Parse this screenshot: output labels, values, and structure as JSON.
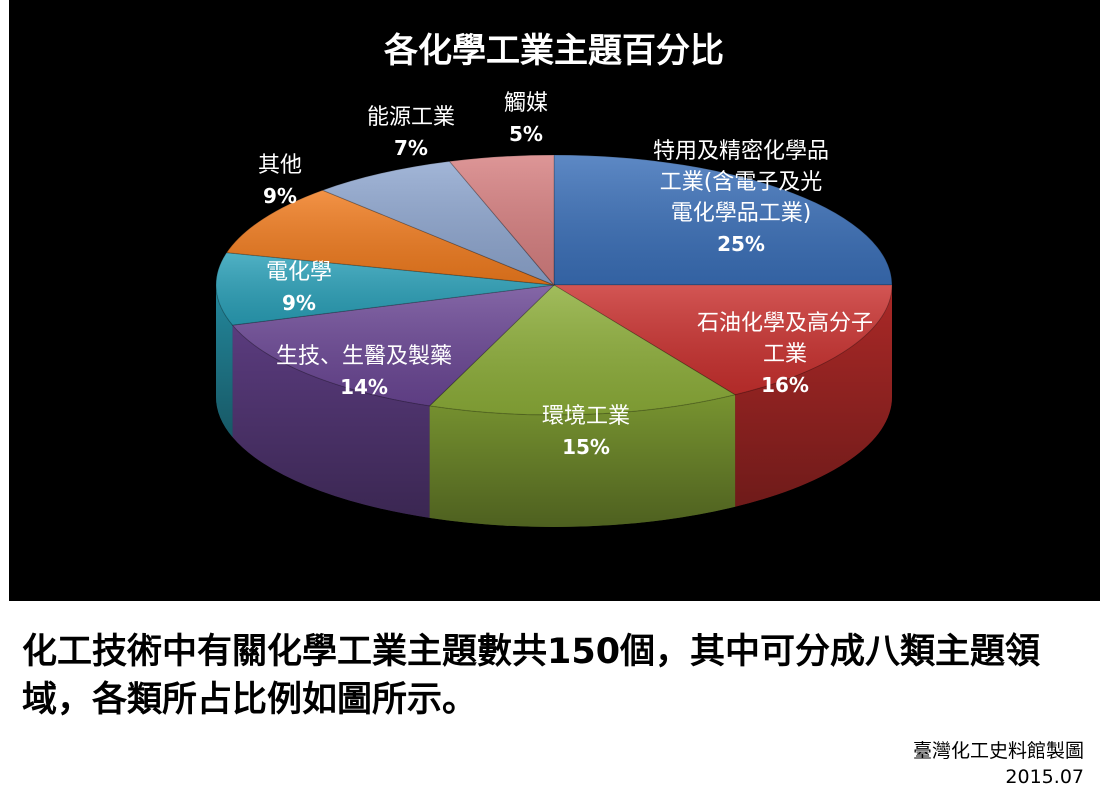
{
  "chart_data": {
    "type": "pie",
    "title": "各化學工業主題百分比",
    "style": "3d",
    "slices": [
      {
        "label": "特用及精密化學品工業(含電子及光電化學品工業)",
        "label_lines": [
          "特用及精密化學品",
          "工業(含電子及光",
          "電化學品工業)"
        ],
        "value": 25,
        "value_label": "25%",
        "color": "#3a6fb8"
      },
      {
        "label": "石油化學及高分子工業",
        "label_lines": [
          "石油化學及高分子",
          "工業"
        ],
        "value": 16,
        "value_label": "16%",
        "color": "#c9302e"
      },
      {
        "label": "環境工業",
        "label_lines": [
          "環境工業"
        ],
        "value": 15,
        "value_label": "15%",
        "color": "#8dae39"
      },
      {
        "label": "生技、生醫及製藥",
        "label_lines": [
          "生技、生醫及製藥"
        ],
        "value": 14,
        "value_label": "14%",
        "color": "#6a4694"
      },
      {
        "label": "電化學",
        "label_lines": [
          "電化學"
        ],
        "value": 9,
        "value_label": "9%",
        "color": "#2aa0b8"
      },
      {
        "label": "其他",
        "label_lines": [
          "其他"
        ],
        "value": 9,
        "value_label": "9%",
        "color": "#f07b1e"
      },
      {
        "label": "能源工業",
        "label_lines": [
          "能源工業"
        ],
        "value": 7,
        "value_label": "7%",
        "color": "#8ea6cf"
      },
      {
        "label": "觸媒",
        "label_lines": [
          "觸媒"
        ],
        "value": 5,
        "value_label": "5%",
        "color": "#d67f80"
      }
    ]
  },
  "caption": "化工技術中有關化學工業主題數共150個，其中可分成八類主題領域，各類所占比例如圖所示。",
  "credit": {
    "line1": "臺灣化工史料館製圖",
    "line2": "2015.07"
  }
}
